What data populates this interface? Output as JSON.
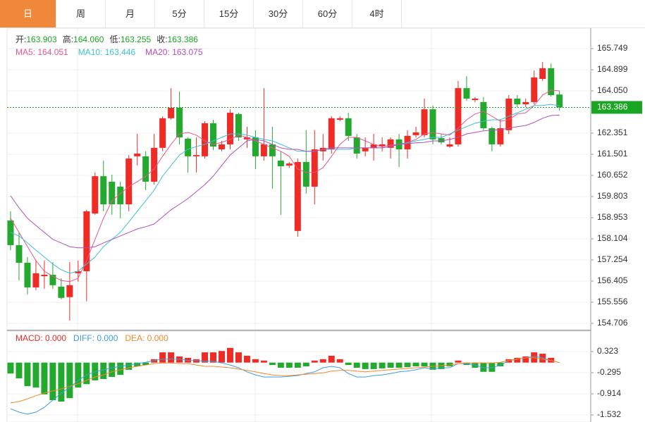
{
  "tabs": [
    "日",
    "周",
    "月",
    "5分",
    "15分",
    "30分",
    "60分",
    "4时"
  ],
  "chart_data": [
    {
      "type": "candlestick",
      "info": [
        {
          "label": "开:",
          "text": "163.903"
        },
        {
          "label": "高:",
          "text": "164.060"
        },
        {
          "label": "低:",
          "text": "163.255"
        },
        {
          "label": "收:",
          "text": "163.386"
        }
      ],
      "up_color": "#ee2b24",
      "down_color": "#23a92e",
      "open": [
        158.84,
        157.85,
        157.14,
        156.15,
        156.6,
        156.66,
        156.18,
        155.76,
        156.72,
        156.8,
        159.12,
        160.62,
        160.4,
        160.2,
        159.49,
        161.42,
        161.42,
        160.4,
        161.76,
        162.95,
        163.37,
        162.13,
        161.42,
        161.42,
        162.75,
        161.7,
        161.9,
        163.12,
        162.1,
        162.18,
        161.42,
        161.9,
        161.25,
        161.05,
        158.42,
        161.19,
        160.2,
        161.62,
        161.7,
        162.89,
        162.95,
        162.18,
        161.62,
        161.76,
        161.81,
        161.76,
        162.1,
        161.7,
        162.27,
        162.27,
        163.31,
        162.15,
        161.81,
        161.9,
        164.16,
        163.68,
        163.6,
        162.55,
        161.9,
        162.47,
        163.74,
        163.51,
        163.6,
        164.53,
        164.96,
        163.903
      ],
      "high": [
        159.21,
        158.36,
        157.37,
        157.23,
        157.23,
        157.17,
        156.52,
        157.17,
        157.23,
        159.27,
        160.77,
        161.25,
        160.68,
        160.4,
        161.47,
        162.32,
        161.62,
        162.32,
        163.03,
        164.16,
        164.02,
        162.18,
        162.18,
        162.83,
        162.89,
        162.04,
        163.31,
        163.17,
        162.61,
        162.47,
        164.16,
        162.61,
        161.62,
        161.19,
        161.33,
        162.47,
        162.47,
        162.32,
        163.03,
        163.03,
        163.17,
        162.32,
        162.18,
        162.32,
        162.18,
        162.18,
        162.32,
        162.47,
        162.61,
        163.74,
        163.46,
        162.32,
        162.18,
        164.45,
        164.64,
        163.8,
        163.8,
        162.61,
        162.89,
        163.88,
        163.88,
        163.74,
        164.87,
        165.21,
        165.15,
        164.06
      ],
      "low": [
        157.65,
        156.43,
        155.87,
        156.04,
        156.1,
        156.1,
        155.67,
        154.82,
        156.38,
        155.59,
        159.07,
        159.21,
        159.07,
        158.93,
        159.21,
        161.05,
        160.06,
        160.28,
        161.62,
        162.89,
        161.9,
        160.77,
        160.77,
        161.33,
        161.67,
        161.62,
        161.7,
        162.04,
        161.76,
        160.91,
        161.25,
        160.12,
        159.07,
        160.96,
        158.19,
        159.92,
        159.49,
        161.25,
        161.53,
        162.83,
        162.04,
        161.33,
        161.42,
        161.25,
        161.62,
        161.33,
        160.99,
        161.33,
        162.18,
        162.18,
        161.9,
        161.9,
        161.76,
        161.81,
        163.65,
        163.6,
        162.47,
        161.62,
        161.81,
        162.32,
        163.4,
        163.4,
        163.51,
        164.45,
        163.82,
        163.255
      ],
      "close": [
        157.85,
        157.14,
        156.15,
        156.72,
        156.66,
        156.24,
        155.73,
        156.24,
        156.8,
        159.21,
        160.62,
        159.49,
        159.49,
        159.49,
        161.33,
        161.53,
        160.4,
        161.76,
        162.95,
        163.37,
        162.18,
        161.42,
        161.47,
        162.75,
        161.81,
        161.9,
        163.17,
        162.18,
        162.18,
        161.42,
        161.9,
        161.42,
        161.02,
        161.13,
        161.19,
        160.2,
        161.7,
        161.76,
        162.95,
        162.95,
        162.24,
        161.53,
        161.76,
        161.9,
        161.9,
        162.1,
        161.7,
        162.24,
        162.38,
        163.31,
        162.1,
        161.98,
        161.9,
        164.16,
        163.74,
        163.74,
        162.55,
        161.9,
        162.55,
        163.74,
        163.51,
        163.6,
        164.59,
        164.96,
        163.88,
        163.386
      ],
      "lines": [
        {
          "legend": "MA5: 164.051",
          "color": "#e8578e",
          "values": [
            158.93,
            158.36,
            157.79,
            157.23,
            156.8,
            156.6,
            156.43,
            156.38,
            156.52,
            157.23,
            158.08,
            158.93,
            159.63,
            159.92,
            160.2,
            160.4,
            160.62,
            160.91,
            161.42,
            161.9,
            162.32,
            162.38,
            162.27,
            162.04,
            161.9,
            161.98,
            162.1,
            162.27,
            162.18,
            162.04,
            161.9,
            161.76,
            161.62,
            161.42,
            160.91,
            160.77,
            160.77,
            160.96,
            161.42,
            161.9,
            162.18,
            162.18,
            162.04,
            161.9,
            161.81,
            161.87,
            161.9,
            161.98,
            162.1,
            162.32,
            162.38,
            162.32,
            162.27,
            162.55,
            162.89,
            163.12,
            163.23,
            163.03,
            162.83,
            162.89,
            163.12,
            163.17,
            163.46,
            163.88,
            164.08,
            164.05
          ]
        },
        {
          "legend": "MA10: 163.446",
          "color": "#3fbfd4",
          "values": [
            158.36,
            158.22,
            157.94,
            157.65,
            157.37,
            157.09,
            156.86,
            156.72,
            156.8,
            157.09,
            157.37,
            157.79,
            158.08,
            158.36,
            158.78,
            159.21,
            159.63,
            160.06,
            160.62,
            161.05,
            161.47,
            161.7,
            161.81,
            161.9,
            162.04,
            162.18,
            162.32,
            162.32,
            162.27,
            162.18,
            162.1,
            162.04,
            161.9,
            161.76,
            161.62,
            161.62,
            161.62,
            161.7,
            161.7,
            161.7,
            161.7,
            161.76,
            161.76,
            161.76,
            161.76,
            161.81,
            161.9,
            161.96,
            162.04,
            162.1,
            162.18,
            162.18,
            162.32,
            162.47,
            162.61,
            162.75,
            162.83,
            162.89,
            162.89,
            163.03,
            163.17,
            163.31,
            163.46,
            163.46,
            163.51,
            163.45
          ]
        },
        {
          "legend": "MA20: 163.075",
          "color": "#b44dbf",
          "values": [
            159.83,
            159.35,
            158.93,
            158.64,
            158.36,
            158.08,
            157.94,
            157.79,
            157.74,
            157.74,
            157.79,
            157.94,
            158.08,
            158.22,
            158.36,
            158.5,
            158.59,
            158.7,
            158.98,
            159.27,
            159.49,
            159.72,
            160.0,
            160.28,
            160.62,
            161.05,
            161.47,
            161.76,
            162.04,
            162.1,
            162.04,
            161.9,
            161.76,
            161.7,
            161.7,
            161.62,
            161.62,
            161.7,
            161.76,
            161.76,
            161.76,
            161.76,
            161.76,
            161.76,
            161.76,
            161.81,
            161.9,
            161.93,
            161.96,
            161.98,
            162.04,
            162.04,
            162.1,
            162.18,
            162.32,
            162.38,
            162.44,
            162.47,
            162.49,
            162.55,
            162.61,
            162.66,
            162.78,
            162.95,
            163.06,
            163.08
          ]
        }
      ],
      "ylim": [
        154.45,
        166.57
      ],
      "yticks": [
        165.749,
        164.899,
        {
          "value": 164.05,
          "label": "164.050"
        },
        162.351,
        161.501,
        160.652,
        159.803,
        158.953,
        158.104,
        157.254,
        156.405,
        155.556,
        154.706
      ],
      "current_color": "#1aa523",
      "grid": true
    },
    {
      "type": "macd",
      "info": [
        {
          "text": "MACD: 0.000",
          "color": "#ee2b24"
        },
        {
          "text": "DIFF: 0.000",
          "color": "#3d9ee0"
        },
        {
          "text": "DEA: 0.000",
          "color": "#f08a2a"
        }
      ],
      "up_color": "#ee2b24",
      "down_color": "#23a92e",
      "values": [
        -0.32,
        -0.46,
        -0.69,
        -0.73,
        -0.93,
        -1.1,
        -1.14,
        -1.04,
        -0.73,
        -0.63,
        -0.52,
        -0.48,
        -0.42,
        -0.36,
        -0.21,
        -0.11,
        -0.07,
        0.1,
        0.3,
        0.3,
        0.18,
        0.14,
        0.1,
        0.3,
        0.3,
        0.34,
        0.43,
        0.3,
        0.2,
        0.1,
        0.06,
        -0.07,
        -0.15,
        -0.15,
        -0.15,
        -0.11,
        0.06,
        0.1,
        0.2,
        0.1,
        -0.07,
        -0.15,
        -0.19,
        -0.19,
        -0.17,
        -0.15,
        -0.15,
        -0.13,
        -0.11,
        -0.11,
        -0.21,
        -0.19,
        -0.11,
        0.06,
        -0.07,
        -0.15,
        -0.27,
        -0.27,
        -0.11,
        0.1,
        0.14,
        0.18,
        0.3,
        0.26,
        0.14,
        0
      ],
      "lines": [
        {
          "color": "#3d9ee0",
          "values": [
            -1.35,
            -1.45,
            -1.51,
            -1.45,
            -1.31,
            -1.1,
            -0.89,
            -0.73,
            -0.52,
            -0.36,
            -0.27,
            -0.21,
            -0.15,
            -0.11,
            -0.07,
            -0.03,
            0.01,
            0.06,
            0.1,
            0.1,
            0.1,
            0.06,
            0.06,
            0.04,
            0.04,
            -0.01,
            -0.07,
            -0.15,
            -0.27,
            -0.36,
            -0.42,
            -0.42,
            -0.42,
            -0.4,
            -0.38,
            -0.32,
            -0.27,
            -0.15,
            -0.11,
            -0.15,
            -0.32,
            -0.42,
            -0.42,
            -0.38,
            -0.36,
            -0.32,
            -0.27,
            -0.25,
            -0.21,
            -0.15,
            -0.19,
            -0.15,
            -0.15,
            -0.03,
            -0.03,
            -0.07,
            -0.15,
            -0.15,
            -0.07,
            0.06,
            0.1,
            0.14,
            0.18,
            0.14,
            0.06,
            0
          ]
        },
        {
          "color": "#f08a2a",
          "values": [
            -1.18,
            -1.14,
            -1.06,
            -0.97,
            -0.89,
            -0.83,
            -0.77,
            -0.69,
            -0.62,
            -0.52,
            -0.42,
            -0.36,
            -0.27,
            -0.21,
            -0.15,
            -0.11,
            -0.07,
            -0.03,
            -0.01,
            -0.01,
            -0.03,
            -0.03,
            -0.07,
            -0.11,
            -0.11,
            -0.13,
            -0.15,
            -0.19,
            -0.23,
            -0.27,
            -0.32,
            -0.36,
            -0.38,
            -0.38,
            -0.36,
            -0.34,
            -0.32,
            -0.3,
            -0.25,
            -0.23,
            -0.23,
            -0.25,
            -0.27,
            -0.25,
            -0.23,
            -0.21,
            -0.19,
            -0.17,
            -0.15,
            -0.13,
            -0.11,
            -0.09,
            -0.07,
            -0.03,
            -0.01,
            -0.01,
            -0.01,
            -0.01,
            0.01,
            0.06,
            0.1,
            0.14,
            0.14,
            0.1,
            0.06,
            0
          ]
        }
      ],
      "ylim": [
        -1.738,
        0.921
      ],
      "yticks": [
        0.323,
        -0.295,
        -0.914,
        -1.532
      ],
      "grid": true
    }
  ]
}
